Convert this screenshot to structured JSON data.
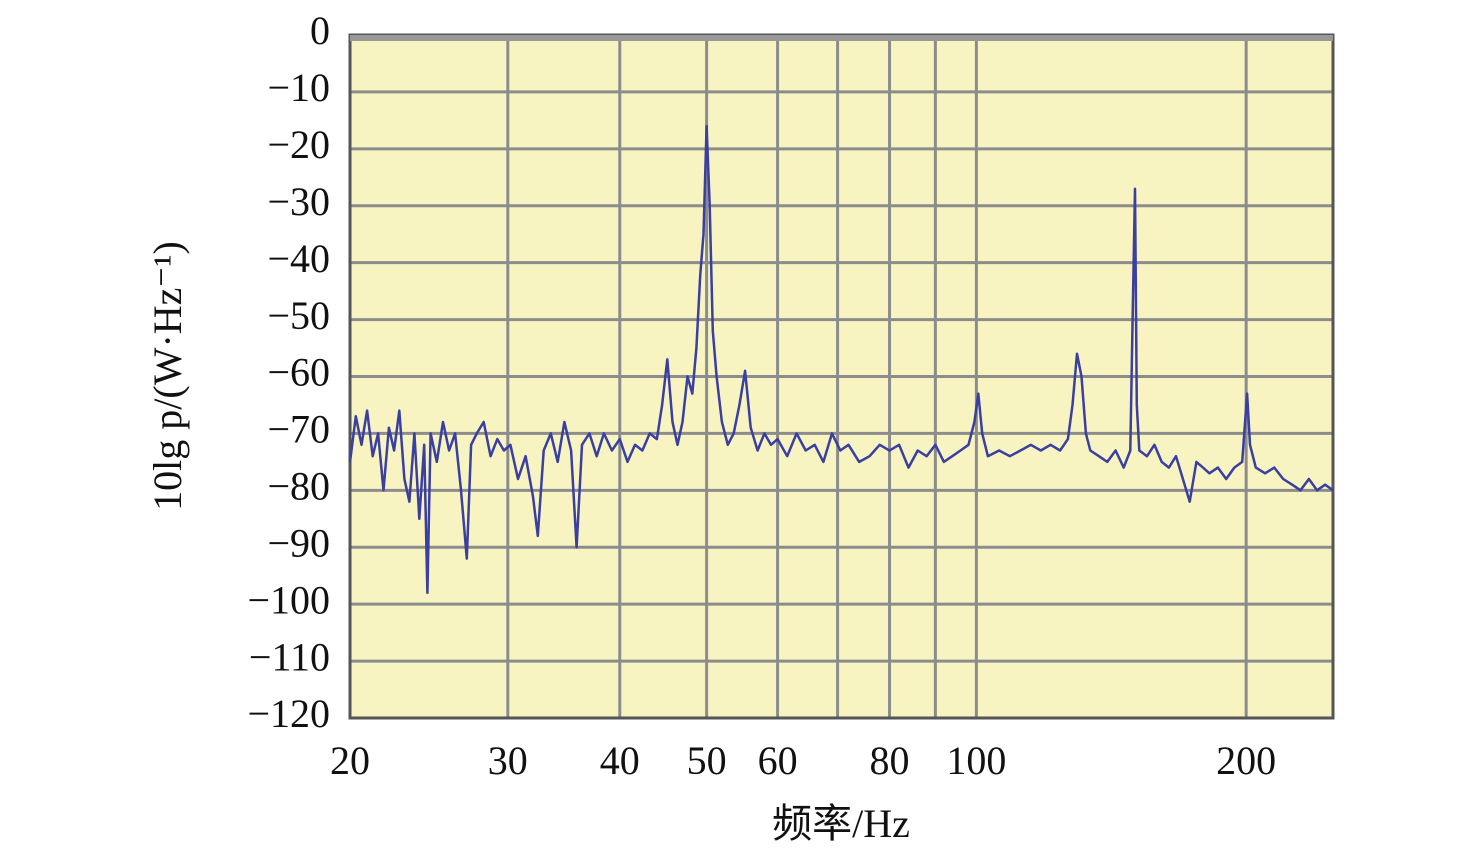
{
  "chart_data": {
    "type": "line",
    "xlabel": "频率/Hz",
    "ylabel": "10lg p/(W·Hz⁻¹)",
    "xscale": "log",
    "xlim": [
      20,
      250
    ],
    "xticks": [
      20,
      30,
      40,
      50,
      60,
      80,
      100,
      200
    ],
    "xminor": [
      70,
      90
    ],
    "ylim": [
      -120,
      0
    ],
    "yticks": [
      0,
      {
        "value": -10,
        "label": "−10"
      },
      {
        "value": -20,
        "label": "−20"
      },
      {
        "value": -30,
        "label": "−30"
      },
      {
        "value": -40,
        "label": "−40"
      },
      {
        "value": -50,
        "label": "−50"
      },
      {
        "value": -60,
        "label": "−60"
      },
      {
        "value": -70,
        "label": "−70"
      },
      {
        "value": -80,
        "label": "−80"
      },
      {
        "value": -90,
        "label": "−90"
      },
      {
        "value": -100,
        "label": "−100"
      },
      {
        "value": -110,
        "label": "−110"
      },
      {
        "value": -120,
        "label": "−120"
      }
    ],
    "grid": true,
    "series": [
      {
        "color": "#3a3fa0",
        "x": [
          20,
          20.3,
          20.6,
          20.9,
          21.2,
          21.5,
          21.8,
          22.1,
          22.4,
          22.7,
          23.0,
          23.3,
          23.6,
          23.9,
          24.2,
          24.4,
          24.6,
          25.0,
          25.4,
          25.8,
          26.2,
          26.6,
          27.0,
          27.3,
          27.7,
          28.2,
          28.7,
          29.2,
          29.7,
          30.2,
          30.8,
          31.4,
          32.0,
          32.4,
          32.9,
          33.5,
          34.1,
          34.7,
          35.3,
          35.8,
          36.3,
          37.0,
          37.7,
          38.4,
          39.2,
          40.0,
          40.8,
          41.6,
          42.4,
          43.2,
          44.0,
          44.6,
          45.2,
          45.8,
          46.4,
          47.0,
          47.6,
          48.2,
          48.7,
          49.2,
          49.6,
          50.0,
          50.4,
          50.8,
          51.3,
          52.0,
          52.8,
          53.6,
          54.4,
          55.2,
          56.0,
          57.0,
          58.0,
          59.0,
          60.0,
          61.5,
          63.0,
          64.5,
          66.0,
          67.5,
          69.0,
          70.5,
          72.0,
          74.0,
          76.0,
          78.0,
          80.0,
          82.0,
          84.0,
          86.0,
          88.0,
          90.0,
          92.0,
          94.0,
          96.0,
          98.0,
          99.5,
          100.5,
          101.5,
          103.0,
          106.0,
          109.0,
          112.0,
          115.0,
          118.0,
          121.0,
          124.0,
          126.5,
          128.0,
          129.5,
          131.0,
          132.5,
          134.0,
          137.0,
          140.0,
          143.0,
          146.0,
          148.5,
          149.5,
          150.3,
          151.0,
          152.0,
          155.0,
          158.0,
          161.0,
          164.0,
          167.0,
          170.0,
          173.0,
          176.0,
          179.0,
          182.0,
          186.0,
          190.0,
          194.0,
          198.0,
          200.5,
          202.0,
          205.0,
          210.0,
          215.0,
          220.0,
          225.0,
          230.0,
          235.0,
          240.0,
          245.0,
          250.0
        ],
        "values": [
          -75,
          -67,
          -72,
          -66,
          -74,
          -70,
          -80,
          -69,
          -73,
          -66,
          -78,
          -82,
          -70,
          -85,
          -72,
          -98,
          -70,
          -75,
          -68,
          -73,
          -70,
          -80,
          -92,
          -72,
          -70,
          -68,
          -74,
          -71,
          -73,
          -72,
          -78,
          -74,
          -81,
          -88,
          -73,
          -70,
          -75,
          -68,
          -73,
          -90,
          -72,
          -70,
          -74,
          -70,
          -73,
          -71,
          -75,
          -72,
          -73,
          -70,
          -71,
          -65,
          -57,
          -68,
          -72,
          -68,
          -60,
          -63,
          -55,
          -42,
          -35,
          -16,
          -30,
          -52,
          -60,
          -68,
          -72,
          -70,
          -65,
          -59,
          -69,
          -73,
          -70,
          -72,
          -71,
          -74,
          -70,
          -73,
          -72,
          -75,
          -70,
          -73,
          -72,
          -75,
          -74,
          -72,
          -73,
          -72,
          -76,
          -73,
          -74,
          -72,
          -75,
          -74,
          -73,
          -72,
          -68,
          -63,
          -70,
          -74,
          -73,
          -74,
          -73,
          -72,
          -73,
          -72,
          -73,
          -71,
          -65,
          -56,
          -60,
          -70,
          -73,
          -74,
          -75,
          -73,
          -76,
          -73,
          -47,
          -27,
          -65,
          -73,
          -74,
          -72,
          -75,
          -76,
          -74,
          -78,
          -82,
          -75,
          -76,
          -77,
          -76,
          -78,
          -76,
          -75,
          -63,
          -72,
          -76,
          -77,
          -76,
          -78,
          -79,
          -80,
          -78,
          -80,
          -79,
          -80
        ]
      }
    ]
  }
}
